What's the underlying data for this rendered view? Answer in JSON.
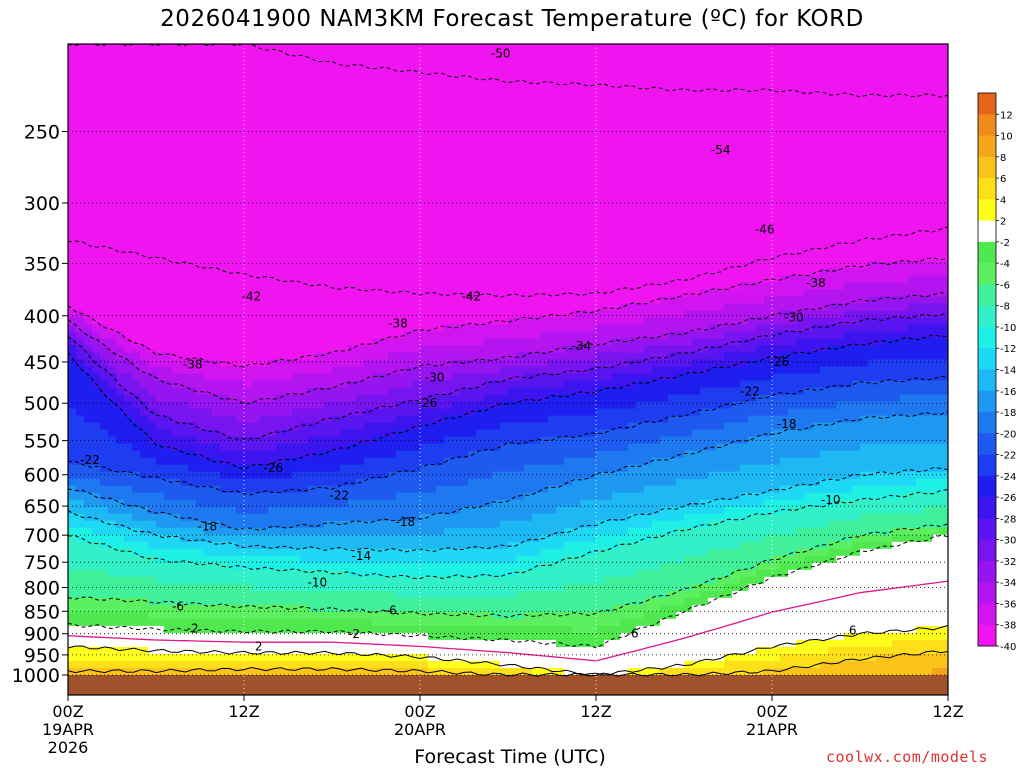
{
  "title": "2026041900 NAM3KM Forecast Temperature (ºC) for KORD",
  "credit": "coolwx.com/models",
  "chart_data": {
    "type": "heatmap",
    "title": "2026041900 NAM3KM Forecast Temperature (ºC) for KORD",
    "xlabel": "Forecast Time (UTC)",
    "ylabel": "",
    "x_ticks": [
      {
        "hour": 0,
        "label": "00Z",
        "sub": [
          "19APR",
          "2026"
        ]
      },
      {
        "hour": 12,
        "label": "12Z",
        "sub": []
      },
      {
        "hour": 24,
        "label": "00Z",
        "sub": [
          "20APR"
        ]
      },
      {
        "hour": 36,
        "label": "12Z",
        "sub": []
      },
      {
        "hour": 48,
        "label": "00Z",
        "sub": [
          "21APR"
        ]
      },
      {
        "hour": 60,
        "label": "12Z",
        "sub": []
      }
    ],
    "xlim_hours": [
      0,
      60
    ],
    "y_ticks": [
      250,
      300,
      350,
      400,
      450,
      500,
      550,
      600,
      650,
      700,
      750,
      800,
      850,
      900,
      950,
      1000
    ],
    "ylim_hPa": [
      200,
      1000
    ],
    "y_scale": "log-pressure",
    "colorbar": {
      "levels": [
        12,
        10,
        8,
        6,
        4,
        2,
        -2,
        -4,
        -6,
        -8,
        -10,
        -12,
        -14,
        -16,
        -18,
        -20,
        -22,
        -24,
        -26,
        -28,
        -30,
        -32,
        -34,
        -36,
        -38,
        -40
      ],
      "colors": [
        "#e8641c",
        "#f08a1a",
        "#f7a51c",
        "#fbc41a",
        "#fde01a",
        "#ffff1c",
        "#ffffff",
        "#4fe84f",
        "#5cf060",
        "#40f09a",
        "#32f0c8",
        "#1ef0e6",
        "#1ed8f5",
        "#1eb8f5",
        "#1e98f0",
        "#1e78f0",
        "#1e5af0",
        "#1e3cf0",
        "#1e1ef0",
        "#3c14f0",
        "#5a14f0",
        "#7814f0",
        "#9614f0",
        "#b414f0",
        "#d214f0",
        "#f014f0"
      ],
      "ground_color": "#a0522d"
    },
    "layers_hPa_by_hour": {
      "hours": [
        0,
        6,
        12,
        18,
        24,
        30,
        36,
        42,
        48,
        54,
        60
      ],
      "isotherms": [
        {
          "t": -50,
          "p": [
            200,
            200,
            200,
            210,
            215,
            220,
            222,
            225,
            225,
            228,
            228
          ]
        },
        {
          "t": -42,
          "p": [
            330,
            345,
            360,
            372,
            378,
            380,
            378,
            365,
            345,
            330,
            320
          ]
        },
        {
          "t": -38,
          "p": [
            390,
            440,
            455,
            440,
            415,
            405,
            395,
            380,
            365,
            352,
            345
          ]
        },
        {
          "t": -34,
          "p": [
            405,
            470,
            500,
            480,
            455,
            445,
            430,
            418,
            400,
            385,
            378
          ]
        },
        {
          "t": -30,
          "p": [
            420,
            515,
            550,
            520,
            495,
            470,
            458,
            440,
            420,
            405,
            398
          ]
        },
        {
          "t": -26,
          "p": [
            440,
            555,
            590,
            565,
            530,
            500,
            485,
            465,
            445,
            430,
            420
          ]
        },
        {
          "t": -22,
          "p": [
            580,
            605,
            630,
            620,
            590,
            555,
            540,
            515,
            490,
            475,
            468
          ]
        },
        {
          "t": -18,
          "p": [
            620,
            660,
            690,
            680,
            670,
            640,
            600,
            570,
            540,
            520,
            512
          ]
        },
        {
          "t": -14,
          "p": [
            660,
            700,
            720,
            725,
            728,
            720,
            680,
            650,
            625,
            600,
            590
          ]
        },
        {
          "t": -10,
          "p": [
            700,
            745,
            760,
            770,
            780,
            775,
            730,
            690,
            660,
            640,
            625
          ]
        },
        {
          "t": -6,
          "p": [
            820,
            830,
            840,
            845,
            855,
            860,
            855,
            805,
            745,
            700,
            680
          ]
        },
        {
          "t": -2,
          "p": [
            880,
            890,
            895,
            895,
            905,
            915,
            930,
            850,
            780,
            730,
            700
          ]
        },
        {
          "t": 2,
          "p": [
            930,
            940,
            945,
            945,
            955,
            975,
            1000,
            975,
            930,
            900,
            885
          ]
        },
        {
          "t": 6,
          "p": [
            990,
            990,
            985,
            985,
            990,
            1000,
            1000,
            1000,
            990,
            960,
            940
          ]
        }
      ]
    },
    "contour_labels": [
      {
        "v": "-50",
        "h": 29.5,
        "p": 205
      },
      {
        "v": "-54",
        "h": 44.5,
        "p": 262
      },
      {
        "v": "-46",
        "h": 47.5,
        "p": 321
      },
      {
        "v": "-42",
        "h": 12.5,
        "p": 381
      },
      {
        "v": "-42",
        "h": 27.5,
        "p": 381
      },
      {
        "v": "-38",
        "h": 51.0,
        "p": 368
      },
      {
        "v": "-38",
        "h": 8.5,
        "p": 453
      },
      {
        "v": "-38",
        "h": 22.5,
        "p": 408
      },
      {
        "v": "-34",
        "h": 35.0,
        "p": 432
      },
      {
        "v": "-30",
        "h": 49.5,
        "p": 402
      },
      {
        "v": "-30",
        "h": 25.0,
        "p": 468
      },
      {
        "v": "-26",
        "h": 48.5,
        "p": 450
      },
      {
        "v": "-26",
        "h": 24.5,
        "p": 500
      },
      {
        "v": "-26",
        "h": 14.0,
        "p": 590
      },
      {
        "v": "-22",
        "h": 46.5,
        "p": 485
      },
      {
        "v": "-22",
        "h": 1.5,
        "p": 578
      },
      {
        "v": "-22",
        "h": 18.5,
        "p": 633
      },
      {
        "v": "-18",
        "h": 49.0,
        "p": 527
      },
      {
        "v": "-18",
        "h": 9.5,
        "p": 685
      },
      {
        "v": "-18",
        "h": 23.0,
        "p": 677
      },
      {
        "v": "-14",
        "h": 20.0,
        "p": 738
      },
      {
        "v": "-10",
        "h": 52.0,
        "p": 640
      },
      {
        "v": "-10",
        "h": 17.0,
        "p": 790
      },
      {
        "v": "-6",
        "h": 7.5,
        "p": 840
      },
      {
        "v": "-6",
        "h": 22.0,
        "p": 848
      },
      {
        "v": "-6",
        "h": 38.5,
        "p": 900
      },
      {
        "v": "-2",
        "h": 8.5,
        "p": 888
      },
      {
        "v": "-2",
        "h": 19.5,
        "p": 901
      },
      {
        "v": "2",
        "h": 13.0,
        "p": 930
      },
      {
        "v": "6",
        "h": 53.5,
        "p": 893
      }
    ]
  }
}
